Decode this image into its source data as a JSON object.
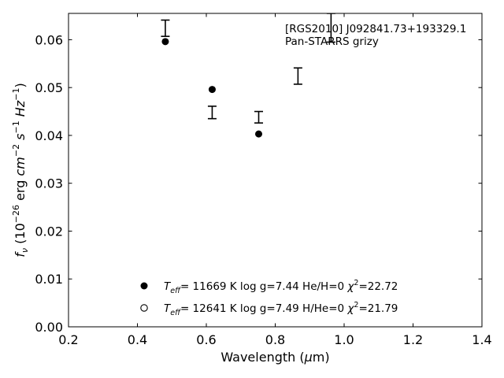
{
  "chart_data": {
    "type": "scatter",
    "title": "",
    "xlabel": {
      "pre": "Wavelength (",
      "greek": "μ",
      "post": "m)"
    },
    "ylabel": {
      "f": "f",
      "nu": "ν",
      "unit_open": "(10",
      "exp": "−26",
      "unit_mid": "erg ",
      "cm": "cm",
      "cm_exp": "−2",
      "s": " s",
      "s_exp": "−1",
      "hz": " Hz",
      "hz_exp": "−1",
      "close": ")"
    },
    "xlim": [
      0.2,
      1.4
    ],
    "ylim": [
      0.0,
      0.0655
    ],
    "xticks": [
      {
        "v": 0.2,
        "label": "0.2"
      },
      {
        "v": 0.4,
        "label": "0.4"
      },
      {
        "v": 0.6,
        "label": "0.6"
      },
      {
        "v": 0.8,
        "label": "0.8"
      },
      {
        "v": 1.0,
        "label": "1.0"
      },
      {
        "v": 1.2,
        "label": "1.2"
      },
      {
        "v": 1.4,
        "label": "1.4"
      }
    ],
    "yticks": [
      {
        "v": 0.0,
        "label": "0.00"
      },
      {
        "v": 0.01,
        "label": "0.01"
      },
      {
        "v": 0.02,
        "label": "0.02"
      },
      {
        "v": 0.03,
        "label": "0.03"
      },
      {
        "v": 0.04,
        "label": "0.04"
      },
      {
        "v": 0.05,
        "label": "0.05"
      },
      {
        "v": 0.06,
        "label": "0.06"
      }
    ],
    "grid": false,
    "annotation": [
      "[RGS2010] J092841.73+193329.1",
      "Pan-STARRS grizy"
    ],
    "observed": [
      {
        "x": 0.481,
        "y": 0.0624,
        "yerr_lo": 0.0607,
        "yerr_hi": 0.0641
      },
      {
        "x": 0.617,
        "y": 0.0448,
        "yerr_lo": 0.0435,
        "yerr_hi": 0.0461
      },
      {
        "x": 0.752,
        "y": 0.0438,
        "yerr_lo": 0.0426,
        "yerr_hi": 0.045
      },
      {
        "x": 0.866,
        "y": 0.0524,
        "yerr_lo": 0.0507,
        "yerr_hi": 0.0541
      },
      {
        "x": 0.962,
        "y": 0.062,
        "yerr_lo": 0.0595,
        "yerr_hi": 0.0655
      }
    ],
    "model_filled": [
      {
        "x": 0.481,
        "y": 0.0596
      },
      {
        "x": 0.617,
        "y": 0.0496
      },
      {
        "x": 0.752,
        "y": 0.0403
      }
    ],
    "legend": {
      "placement": "lower-center",
      "entries": [
        {
          "marker": "filled-circle",
          "teff_prefix": "T",
          "teff_sub": "eff",
          "text": "= 11669 K  log g=7.44  He/H=0  ",
          "chi": "χ",
          "chi_exp": "2",
          "chi_val": "=22.72"
        },
        {
          "marker": "open-circle",
          "teff_prefix": "T",
          "teff_sub": "eff",
          "text": "= 12641 K  log g=7.49  H/He=0  ",
          "chi": "χ",
          "chi_exp": "2",
          "chi_val": "=21.79"
        }
      ]
    }
  }
}
